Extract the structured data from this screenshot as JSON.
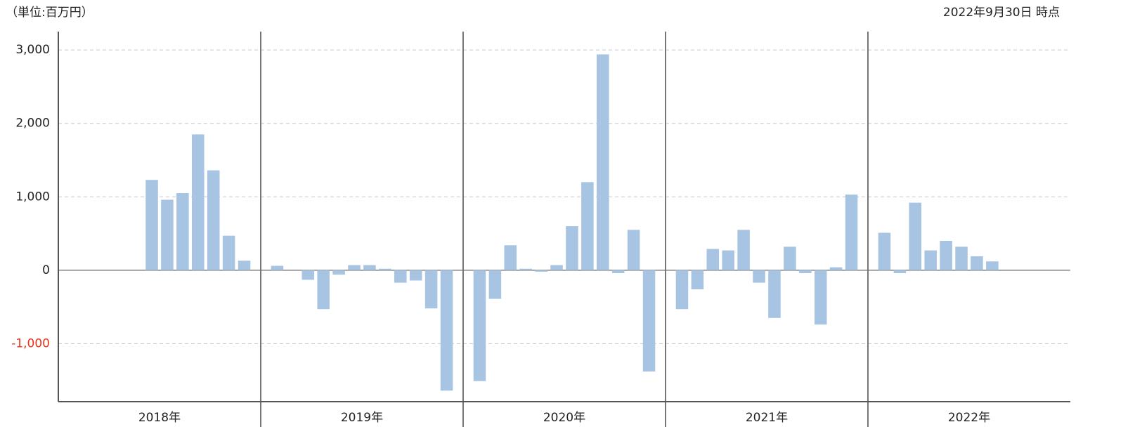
{
  "chart_data": {
    "type": "bar",
    "unit_note": "（単位:百万円）",
    "as_of": "2022年9月30日 時点",
    "categories": [
      "2018年",
      "2019年",
      "2020年",
      "2021年",
      "2022年"
    ],
    "values": [
      [
        null,
        null,
        null,
        null,
        null,
        1230,
        960,
        1050,
        1850,
        1360,
        470,
        130
      ],
      [
        60,
        0,
        -130,
        -530,
        -60,
        70,
        70,
        20,
        -170,
        -140,
        -520,
        -1640
      ],
      [
        -1510,
        -390,
        340,
        20,
        -20,
        70,
        600,
        1200,
        2940,
        -40,
        550,
        -1380
      ],
      [
        -530,
        -260,
        290,
        270,
        550,
        -170,
        -650,
        320,
        -40,
        -740,
        40,
        1030
      ],
      [
        510,
        -40,
        920,
        270,
        400,
        320,
        190,
        120,
        null,
        null,
        null,
        null
      ]
    ],
    "color": "#a7c4e2",
    "negative_tick_color": "#e8341c",
    "ylim": [
      -1790,
      3250
    ],
    "yticks": [
      {
        "value": -1000,
        "label": "-1,000"
      },
      0,
      {
        "value": 1000,
        "label": "1,000"
      },
      {
        "value": 2000,
        "label": "2,000"
      },
      {
        "value": 3000,
        "label": "3,000"
      }
    ],
    "grid": true
  }
}
